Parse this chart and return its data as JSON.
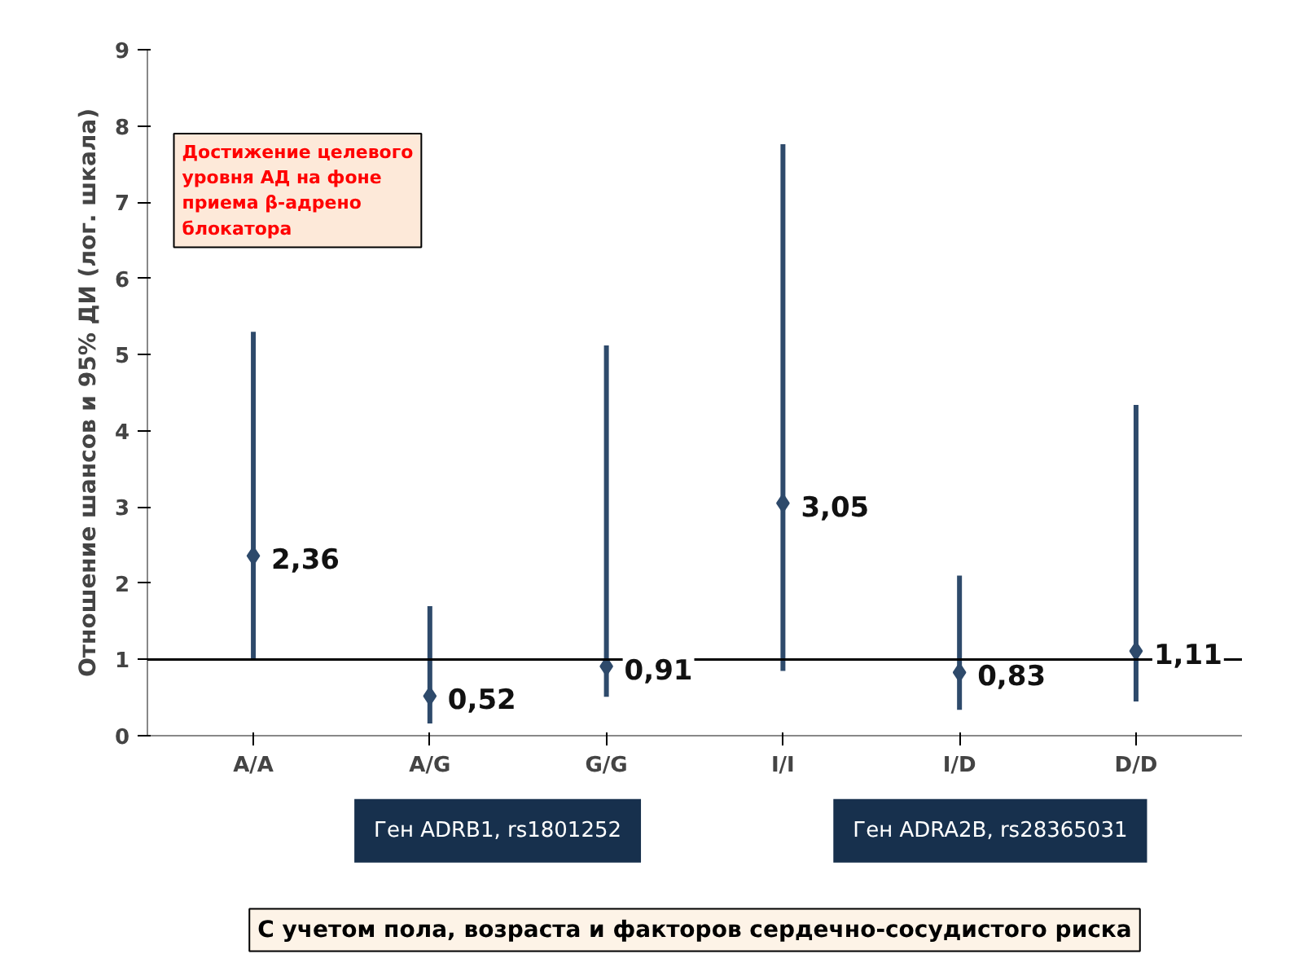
{
  "chart_data": {
    "type": "scatter",
    "ylabel": "Отношение шансов и 95% ДИ (лог. шкала)",
    "categories": [
      "A/A",
      "A/G",
      "G/G",
      "I/I",
      "I/D",
      "D/D"
    ],
    "series": [
      {
        "color": "#2e4a6b",
        "values": [
          2.36,
          0.52,
          0.91,
          3.05,
          0.83,
          1.11
        ],
        "errors": [
          [
            1.0,
            5.3
          ],
          [
            0.16,
            1.7
          ],
          [
            0.51,
            5.12
          ],
          [
            0.85,
            7.76
          ],
          [
            0.34,
            2.1
          ],
          [
            0.45,
            4.34
          ]
        ],
        "value_labels": [
          "2,36",
          "0,52",
          "0,91",
          "3,05",
          "0,83",
          "1,11"
        ]
      }
    ],
    "ylim": [
      0,
      9
    ],
    "yticks": [
      0,
      1,
      2,
      3,
      4,
      5,
      6,
      7,
      8,
      9
    ],
    "grid": false,
    "marker": "diamond",
    "ref_lines": [
      {
        "axis": "y",
        "value": 1,
        "color": "#000000"
      }
    ],
    "annotations": [
      "Достижение целевого уровня АД на фоне приема β-адрено блокатора",
      "Ген ADRB1, rs1801252",
      "Ген ADRA2B, rs28365031",
      "С учетом пола, возраста и факторов сердечно-сосудистого риска"
    ]
  }
}
